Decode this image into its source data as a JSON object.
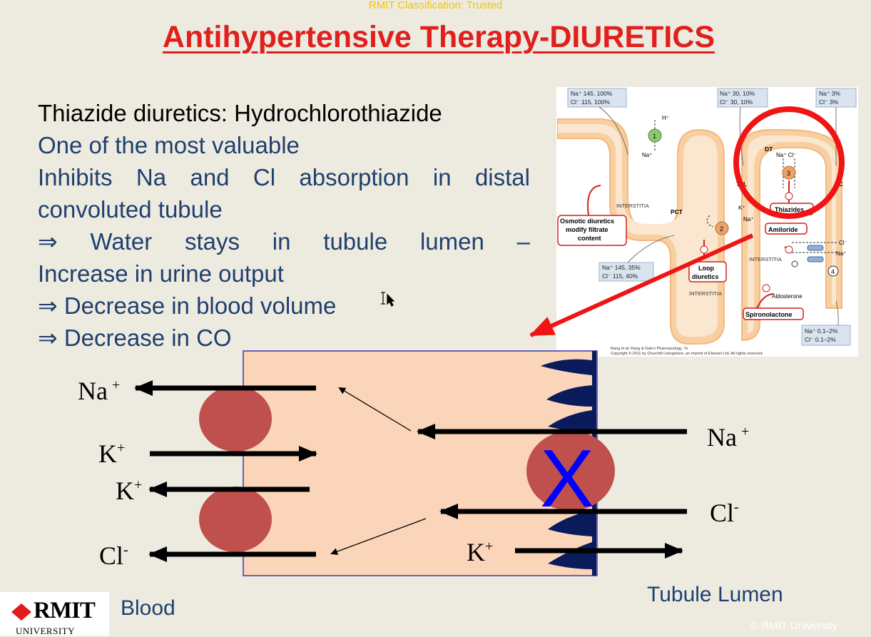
{
  "classification": "RMIT Classification: Trusted",
  "title": "Antihypertensive Therapy-DIURETICS",
  "bullets": {
    "heading": "Thiazide diuretics: Hydrochlorothiazide",
    "line1": "One of the most valuable",
    "line2a": "Inhibits Na and Cl absorption in distal",
    "line2b": "convoluted tubule",
    "line3a": "⇒ Water stays in tubule lumen –",
    "line3b": "Increase in urine output",
    "line4": "⇒ Decrease in blood volume",
    "line5": "⇒ Decrease in CO"
  },
  "figure": {
    "box_na_cl_1": [
      "Na⁺ 145, 100%",
      "Cl⁻ 115, 100%"
    ],
    "box_na_cl_2": [
      "Na⁺ 30, 10%",
      "Cl⁻ 30, 10%"
    ],
    "box_na_cl_3": [
      "Na⁺ 3%",
      "Cl⁻ 3%"
    ],
    "box_na_cl_4": [
      "Na⁺ 145, 35%",
      "Cl⁻ 115, 40%"
    ],
    "box_na_cl_5": [
      "Na⁺ 0.1–2%",
      "Cl⁻ 0.1–2%"
    ],
    "h_plus": "H⁺",
    "na_plus": "Na⁺",
    "dt": "DT",
    "na_cl": "Na⁺ Cl⁻",
    "tal": "TAL",
    "c": "C",
    "pct": "PCT",
    "interstitia": "INTERSTITIA",
    "osmotic": [
      "Osmotic diuretics",
      "modify filtrate",
      "content"
    ],
    "thiazides": "Thiazides",
    "amiloride": "Amiloride",
    "loop": [
      "Loop",
      "diuretics"
    ],
    "aldosterone": "Aldosterone",
    "spironolactone": "Spironolactone",
    "k_plus": "K⁺",
    "cl_minus": "Cl⁻",
    "n1": "1",
    "n2": "2",
    "n3": "3",
    "n4": "4",
    "credit1": "Rang et al: Rang & Dale's Pharmacology, 7e",
    "credit2": "Copyright © 2011 by Churchill Livingstone, an imprint of Elsevier Ltd. All rights reserved."
  },
  "cell": {
    "na_left": "Na",
    "na_left_sup": "+",
    "k_left_1": "K",
    "k_left_1_sup": "+",
    "k_left_2": "K",
    "k_left_2_sup": "+",
    "cl_left": "Cl",
    "cl_left_sup": "-",
    "na_right": "Na",
    "na_right_sup": "+",
    "cl_right": "Cl",
    "cl_right_sup": "-",
    "k_right": "K",
    "k_right_sup": "+",
    "block_mark": "X"
  },
  "colors": {
    "title_red": "#e0201d",
    "text_blue": "#1f3f6e",
    "cell_fill": "#fad5b9",
    "channel_red": "#c0504d",
    "x_blue": "#0000ff"
  },
  "logo": {
    "word": "RMIT",
    "sub": "UNIVERSITY"
  },
  "labels": {
    "blood": "Blood",
    "tubule": "Tubule Lumen"
  },
  "copyright": "© RMIT University"
}
